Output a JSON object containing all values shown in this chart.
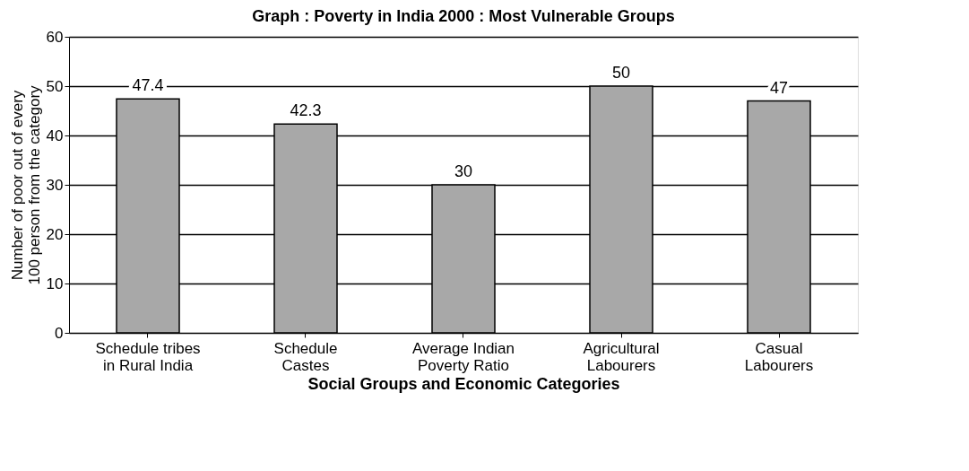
{
  "chart_data": {
    "type": "bar",
    "title": "Graph : Poverty in India 2000 : Most Vulnerable Groups",
    "xlabel": "Social Groups and Economic Categories",
    "ylabel": "Number of poor out of every 100 person from the category",
    "categories": [
      "Schedule tribes in Rural India",
      "Schedule Castes",
      "Average Indian Poverty Ratio",
      "Agricultural Labourers",
      "Casual Labourers"
    ],
    "values": [
      47.4,
      42.3,
      30,
      50,
      47
    ],
    "color": "#a8a8a8",
    "ylim": [
      0,
      60
    ],
    "yticks": [
      0,
      10,
      20,
      30,
      40,
      50,
      60
    ],
    "grid": "y",
    "data_labels": true
  }
}
